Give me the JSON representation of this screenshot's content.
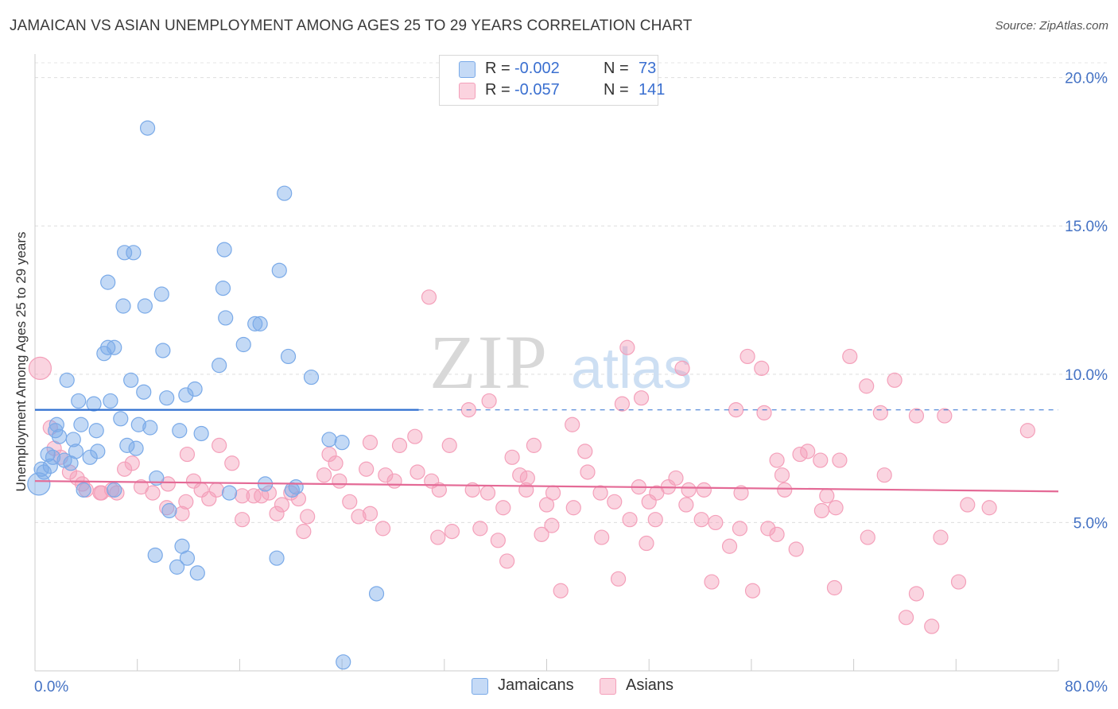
{
  "title": "JAMAICAN VS ASIAN UNEMPLOYMENT AMONG AGES 25 TO 29 YEARS CORRELATION CHART",
  "source": "Source: ZipAtlas.com",
  "colors": {
    "jamaicans": "#7aaae8",
    "asians": "#f4a0ba",
    "trend_jamaicans": "#2f6fd0",
    "trend_asians": "#e46a96",
    "accent_text": "#3a6fd0"
  },
  "legend": {
    "rows": [
      {
        "r_label": "R =",
        "r_value": "-0.002",
        "n_label": "N =",
        "n_value": "73"
      },
      {
        "r_label": "R =",
        "r_value": "-0.057",
        "n_label": "N =",
        "n_value": "141"
      }
    ]
  },
  "chart_data": {
    "type": "scatter",
    "title": "JAMAICAN VS ASIAN UNEMPLOYMENT AMONG AGES 25 TO 29 YEARS CORRELATION CHART",
    "xlabel": "",
    "ylabel": "Unemployment Among Ages 25 to 29 years",
    "xlim": [
      0,
      80
    ],
    "ylim": [
      0,
      20.5
    ],
    "x_tick_labels": [
      "0.0%",
      "80.0%"
    ],
    "y_ticks": [
      5,
      10,
      15,
      20
    ],
    "y_tick_labels": [
      "5.0%",
      "10.0%",
      "15.0%",
      "20.0%"
    ],
    "legend_position": "bottom-center",
    "grid": "horizontal-dashed",
    "series": [
      {
        "name": "Jamaicans",
        "trend": {
          "x": [
            0,
            80
          ],
          "y": [
            8.8,
            8.8
          ],
          "solid_until_x": 30
        },
        "points": [
          [
            8.8,
            18.3
          ],
          [
            19.5,
            16.1
          ],
          [
            7.0,
            14.1
          ],
          [
            7.7,
            14.1
          ],
          [
            14.8,
            14.2
          ],
          [
            19.1,
            13.5
          ],
          [
            5.7,
            13.1
          ],
          [
            9.9,
            12.7
          ],
          [
            6.9,
            12.3
          ],
          [
            8.6,
            12.3
          ],
          [
            14.7,
            12.9
          ],
          [
            14.9,
            11.9
          ],
          [
            17.2,
            11.7
          ],
          [
            17.6,
            11.7
          ],
          [
            5.7,
            10.9
          ],
          [
            6.2,
            10.9
          ],
          [
            5.4,
            10.7
          ],
          [
            10.0,
            10.8
          ],
          [
            16.3,
            11.0
          ],
          [
            19.8,
            10.6
          ],
          [
            14.4,
            10.3
          ],
          [
            21.6,
            9.9
          ],
          [
            2.5,
            9.8
          ],
          [
            7.5,
            9.8
          ],
          [
            8.5,
            9.4
          ],
          [
            12.5,
            9.5
          ],
          [
            3.4,
            9.1
          ],
          [
            4.6,
            9.0
          ],
          [
            5.9,
            9.1
          ],
          [
            10.3,
            9.2
          ],
          [
            11.8,
            9.3
          ],
          [
            6.7,
            8.5
          ],
          [
            1.7,
            8.3
          ],
          [
            3.6,
            8.3
          ],
          [
            1.6,
            8.1
          ],
          [
            4.8,
            8.1
          ],
          [
            8.1,
            8.3
          ],
          [
            9.0,
            8.2
          ],
          [
            11.3,
            8.1
          ],
          [
            13.0,
            8.0
          ],
          [
            1.9,
            7.9
          ],
          [
            3.0,
            7.8
          ],
          [
            7.2,
            7.6
          ],
          [
            7.9,
            7.5
          ],
          [
            1.0,
            7.3
          ],
          [
            1.4,
            7.2
          ],
          [
            3.2,
            7.4
          ],
          [
            4.9,
            7.4
          ],
          [
            2.3,
            7.1
          ],
          [
            4.3,
            7.2
          ],
          [
            1.2,
            6.9
          ],
          [
            0.5,
            6.8
          ],
          [
            23.0,
            7.8
          ],
          [
            24.0,
            7.7
          ],
          [
            0.3,
            6.3
          ],
          [
            3.8,
            6.1
          ],
          [
            20.4,
            6.2
          ],
          [
            20.1,
            6.1
          ],
          [
            10.5,
            5.4
          ],
          [
            9.4,
            3.9
          ],
          [
            11.5,
            4.2
          ],
          [
            11.1,
            3.5
          ],
          [
            11.9,
            3.8
          ],
          [
            12.7,
            3.3
          ],
          [
            18.9,
            3.8
          ],
          [
            26.7,
            2.6
          ],
          [
            24.1,
            0.3
          ],
          [
            0.7,
            6.7
          ],
          [
            2.8,
            7.0
          ],
          [
            6.2,
            6.1
          ],
          [
            15.2,
            6.0
          ],
          [
            18.0,
            6.3
          ],
          [
            9.5,
            6.5
          ]
        ]
      },
      {
        "name": "Asians",
        "trend": {
          "x": [
            0,
            80
          ],
          "y": [
            6.4,
            6.05
          ]
        },
        "points": [
          [
            30.8,
            12.6
          ],
          [
            46.3,
            10.9
          ],
          [
            55.7,
            10.6
          ],
          [
            63.7,
            10.6
          ],
          [
            50.6,
            10.2
          ],
          [
            56.8,
            10.2
          ],
          [
            65.0,
            9.6
          ],
          [
            67.2,
            9.8
          ],
          [
            35.5,
            9.1
          ],
          [
            47.4,
            9.2
          ],
          [
            45.9,
            9.0
          ],
          [
            33.9,
            8.8
          ],
          [
            54.8,
            8.8
          ],
          [
            57.0,
            8.7
          ],
          [
            66.1,
            8.7
          ],
          [
            68.9,
            8.6
          ],
          [
            71.1,
            8.6
          ],
          [
            77.6,
            8.1
          ],
          [
            42.0,
            8.3
          ],
          [
            29.7,
            7.9
          ],
          [
            26.2,
            7.7
          ],
          [
            28.5,
            7.6
          ],
          [
            32.4,
            7.6
          ],
          [
            39.0,
            7.6
          ],
          [
            43.0,
            7.4
          ],
          [
            37.3,
            7.2
          ],
          [
            58.0,
            7.1
          ],
          [
            59.8,
            7.3
          ],
          [
            60.4,
            7.4
          ],
          [
            61.4,
            7.1
          ],
          [
            62.9,
            7.1
          ],
          [
            0.4,
            10.2
          ],
          [
            1.2,
            8.2
          ],
          [
            1.5,
            7.5
          ],
          [
            2.0,
            7.2
          ],
          [
            14.4,
            7.6
          ],
          [
            11.9,
            7.3
          ],
          [
            15.4,
            7.0
          ],
          [
            23.0,
            7.3
          ],
          [
            23.5,
            7.0
          ],
          [
            7.6,
            7.0
          ],
          [
            7.0,
            6.8
          ],
          [
            2.7,
            6.7
          ],
          [
            3.3,
            6.5
          ],
          [
            25.9,
            6.8
          ],
          [
            27.4,
            6.6
          ],
          [
            29.9,
            6.7
          ],
          [
            37.9,
            6.6
          ],
          [
            38.5,
            6.5
          ],
          [
            43.2,
            6.7
          ],
          [
            50.1,
            6.5
          ],
          [
            58.4,
            6.6
          ],
          [
            66.4,
            6.6
          ],
          [
            22.6,
            6.6
          ],
          [
            23.8,
            6.4
          ],
          [
            28.1,
            6.4
          ],
          [
            31.0,
            6.4
          ],
          [
            3.7,
            6.3
          ],
          [
            4.0,
            6.1
          ],
          [
            5.1,
            6.0
          ],
          [
            6.0,
            6.1
          ],
          [
            6.4,
            6.0
          ],
          [
            8.3,
            6.2
          ],
          [
            9.2,
            6.0
          ],
          [
            12.4,
            6.4
          ],
          [
            13.0,
            6.1
          ],
          [
            14.2,
            6.1
          ],
          [
            17.1,
            5.9
          ],
          [
            18.3,
            6.0
          ],
          [
            20.0,
            6.0
          ],
          [
            31.6,
            6.1
          ],
          [
            34.2,
            6.1
          ],
          [
            35.4,
            6.0
          ],
          [
            38.4,
            6.1
          ],
          [
            40.5,
            6.0
          ],
          [
            44.2,
            6.0
          ],
          [
            47.2,
            6.2
          ],
          [
            48.6,
            6.0
          ],
          [
            49.5,
            6.2
          ],
          [
            51.1,
            6.1
          ],
          [
            52.3,
            6.1
          ],
          [
            55.2,
            6.0
          ],
          [
            58.6,
            6.1
          ],
          [
            61.9,
            5.9
          ],
          [
            5.2,
            6.0
          ],
          [
            10.4,
            6.3
          ],
          [
            11.8,
            5.7
          ],
          [
            13.6,
            5.8
          ],
          [
            16.2,
            5.9
          ],
          [
            17.7,
            5.9
          ],
          [
            20.6,
            5.8
          ],
          [
            19.3,
            5.6
          ],
          [
            24.6,
            5.7
          ],
          [
            26.2,
            5.3
          ],
          [
            36.6,
            5.5
          ],
          [
            40.0,
            5.6
          ],
          [
            42.1,
            5.5
          ],
          [
            45.3,
            5.7
          ],
          [
            48.0,
            5.7
          ],
          [
            50.9,
            5.6
          ],
          [
            52.1,
            5.1
          ],
          [
            53.2,
            5.0
          ],
          [
            61.5,
            5.4
          ],
          [
            62.6,
            5.5
          ],
          [
            72.9,
            5.6
          ],
          [
            74.6,
            5.5
          ],
          [
            10.3,
            5.5
          ],
          [
            11.5,
            5.3
          ],
          [
            16.2,
            5.1
          ],
          [
            18.9,
            5.3
          ],
          [
            21.3,
            5.2
          ],
          [
            25.3,
            5.2
          ],
          [
            27.2,
            4.8
          ],
          [
            34.8,
            4.8
          ],
          [
            40.4,
            4.9
          ],
          [
            46.5,
            5.1
          ],
          [
            48.5,
            5.1
          ],
          [
            55.1,
            4.8
          ],
          [
            57.3,
            4.8
          ],
          [
            21.0,
            4.7
          ],
          [
            31.5,
            4.5
          ],
          [
            32.6,
            4.7
          ],
          [
            36.2,
            4.4
          ],
          [
            39.6,
            4.6
          ],
          [
            44.3,
            4.5
          ],
          [
            47.8,
            4.3
          ],
          [
            54.3,
            4.2
          ],
          [
            58.0,
            4.6
          ],
          [
            65.1,
            4.5
          ],
          [
            70.8,
            4.5
          ],
          [
            59.5,
            4.1
          ],
          [
            36.9,
            3.7
          ],
          [
            45.6,
            3.1
          ],
          [
            52.9,
            3.0
          ],
          [
            56.1,
            2.7
          ],
          [
            62.5,
            2.8
          ],
          [
            68.9,
            2.6
          ],
          [
            72.2,
            3.0
          ],
          [
            41.1,
            2.7
          ],
          [
            68.1,
            1.8
          ],
          [
            70.1,
            1.5
          ]
        ]
      }
    ]
  }
}
